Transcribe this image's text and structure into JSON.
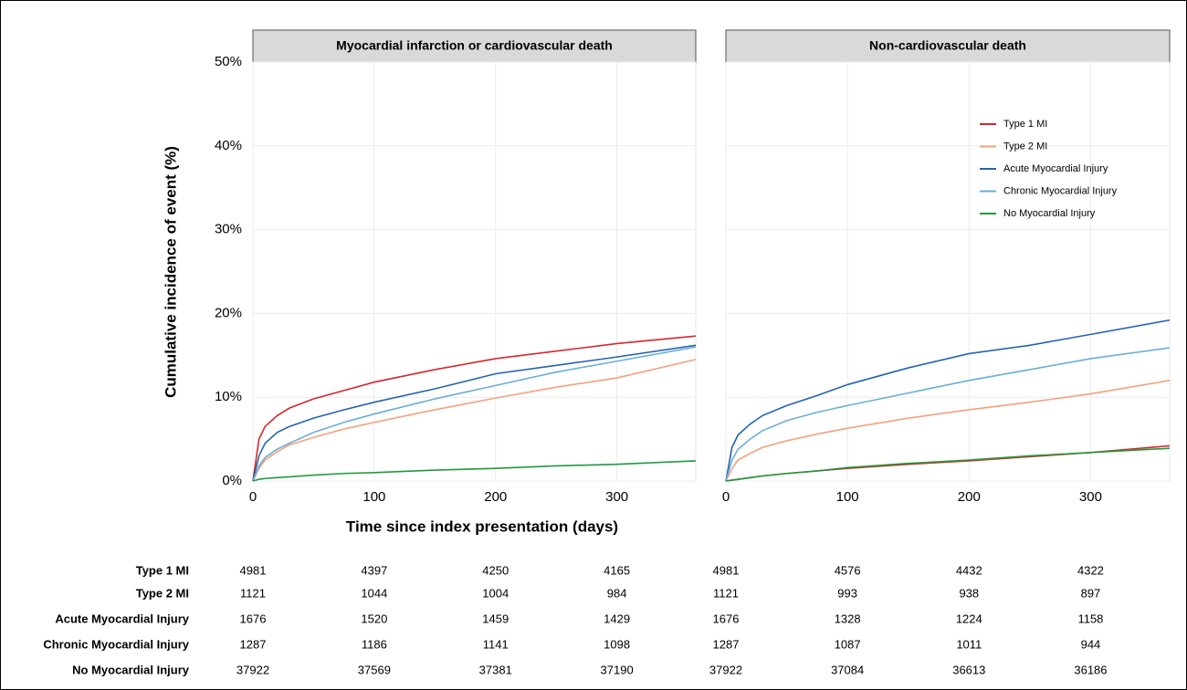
{
  "axis_titles": {
    "x": "Time since index presentation (days)",
    "y": "Cumulative incidence of event (%)"
  },
  "chart_data": [
    {
      "type": "line",
      "title": "Myocardial infarction or cardiovascular death",
      "x": [
        0,
        5,
        10,
        20,
        30,
        50,
        75,
        100,
        150,
        200,
        250,
        300,
        365
      ],
      "xlim": [
        0,
        365
      ],
      "xticks": [
        0,
        100,
        200,
        300
      ],
      "ylim": [
        0,
        50
      ],
      "yticks": [
        {
          "value": 0,
          "label": "0%"
        },
        {
          "value": 10,
          "label": "10%"
        },
        {
          "value": 20,
          "label": "20%"
        },
        {
          "value": 30,
          "label": "30%"
        },
        {
          "value": 40,
          "label": "40%"
        },
        {
          "value": 50,
          "label": "50%"
        }
      ],
      "grid": true,
      "series": [
        {
          "name": "Type 1 MI",
          "color": "#d7262b",
          "values": [
            0,
            5,
            6.5,
            7.8,
            8.7,
            9.8,
            10.8,
            11.8,
            13.3,
            14.6,
            15.5,
            16.4,
            17.3
          ]
        },
        {
          "name": "Type 2 MI",
          "color": "#f4a07e",
          "values": [
            0,
            1.5,
            2.5,
            3.5,
            4.3,
            5.2,
            6.2,
            7.0,
            8.5,
            9.9,
            11.2,
            12.3,
            14.5
          ]
        },
        {
          "name": "Acute Myocardial Injury",
          "color": "#2563ad",
          "values": [
            0,
            3,
            4.5,
            5.8,
            6.5,
            7.5,
            8.5,
            9.4,
            11.0,
            12.8,
            13.8,
            14.8,
            16.2
          ]
        },
        {
          "name": "Chronic Myocardial Injury",
          "color": "#6aaed6",
          "values": [
            0,
            1.8,
            2.8,
            3.8,
            4.5,
            5.8,
            7.0,
            8.0,
            9.8,
            11.4,
            13.0,
            14.3,
            16.0
          ]
        },
        {
          "name": "No Myocardial Injury",
          "color": "#1f9a3e",
          "values": [
            0,
            0.2,
            0.3,
            0.4,
            0.5,
            0.7,
            0.9,
            1.0,
            1.3,
            1.5,
            1.8,
            2.0,
            2.4
          ]
        }
      ]
    },
    {
      "type": "line",
      "title": "Non-cardiovascular death",
      "x": [
        0,
        5,
        10,
        20,
        30,
        50,
        75,
        100,
        150,
        200,
        250,
        300,
        365
      ],
      "xlim": [
        0,
        365
      ],
      "xticks": [
        0,
        100,
        200,
        300
      ],
      "ylim": [
        0,
        50
      ],
      "grid": true,
      "legend": "upper right",
      "series": [
        {
          "name": "Type 1 MI",
          "color": "#d7262b",
          "values": [
            0,
            0.1,
            0.2,
            0.4,
            0.6,
            0.9,
            1.2,
            1.5,
            2.0,
            2.4,
            2.9,
            3.4,
            4.2
          ]
        },
        {
          "name": "Type 2 MI",
          "color": "#f4a07e",
          "values": [
            0,
            1.5,
            2.5,
            3.3,
            4.0,
            4.8,
            5.6,
            6.3,
            7.5,
            8.5,
            9.4,
            10.4,
            12.0
          ]
        },
        {
          "name": "Acute Myocardial Injury",
          "color": "#2563ad",
          "values": [
            0,
            4,
            5.5,
            6.8,
            7.8,
            9.0,
            10.2,
            11.5,
            13.5,
            15.2,
            16.2,
            17.5,
            19.2
          ]
        },
        {
          "name": "Chronic Myocardial Injury",
          "color": "#6aaed6",
          "values": [
            0,
            2.5,
            3.8,
            5.0,
            6.0,
            7.2,
            8.2,
            9.0,
            10.5,
            12.0,
            13.3,
            14.6,
            15.9
          ]
        },
        {
          "name": "No Myocardial Injury",
          "color": "#1f9a3e",
          "values": [
            0,
            0.1,
            0.2,
            0.4,
            0.6,
            0.9,
            1.2,
            1.6,
            2.1,
            2.5,
            3.0,
            3.4,
            3.9
          ]
        }
      ]
    }
  ],
  "risk_table": {
    "rows": [
      {
        "label": "Type 1 MI",
        "counts": [
          "4981",
          "4397",
          "4250",
          "4165",
          "4981",
          "4576",
          "4432",
          "4322"
        ]
      },
      {
        "label": "Type 2 MI",
        "counts": [
          "1121",
          "1044",
          "1004",
          "984",
          "1121",
          "993",
          "938",
          "897"
        ]
      },
      {
        "label": "Acute Myocardial Injury",
        "counts": [
          "1676",
          "1520",
          "1459",
          "1429",
          "1676",
          "1328",
          "1224",
          "1158"
        ]
      },
      {
        "label": "Chronic Myocardial Injury",
        "counts": [
          "1287",
          "1186",
          "1141",
          "1098",
          "1287",
          "1087",
          "1011",
          "944"
        ]
      },
      {
        "label": "No Myocardial Injury",
        "counts": [
          "37922",
          "37569",
          "37381",
          "37190",
          "37922",
          "37084",
          "36613",
          "36186"
        ]
      }
    ]
  }
}
